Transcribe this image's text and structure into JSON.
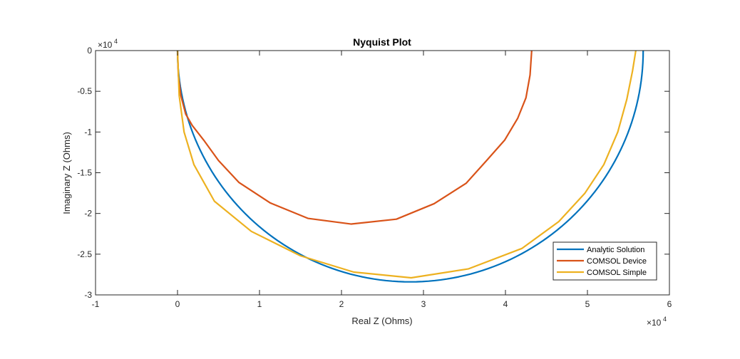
{
  "chart_data": {
    "type": "line",
    "title": "Nyquist Plot",
    "xlabel": "Real Z (Ohms)",
    "ylabel": "Imaginary Z (Ohms)",
    "x_multiplier_label": "×10",
    "x_multiplier_exp": "4",
    "y_multiplier_label": "×10",
    "y_multiplier_exp": "4",
    "xlim": [
      -1,
      6
    ],
    "ylim": [
      -3,
      0
    ],
    "x_ticks": [
      -1,
      0,
      1,
      2,
      3,
      4,
      5,
      6
    ],
    "x_tick_labels": [
      "-1",
      "0",
      "1",
      "2",
      "3",
      "4",
      "5",
      "6"
    ],
    "y_ticks": [
      0,
      -0.5,
      -1,
      -1.5,
      -2,
      -2.5,
      -3
    ],
    "y_tick_labels": [
      "0",
      "-0.5",
      "-1",
      "-1.5",
      "-2",
      "-2.5",
      "-3"
    ],
    "grid": false,
    "legend_position": "lower-right",
    "units_note": "values in units of 10^4 Ohms",
    "series": [
      {
        "name": "Analytic Solution",
        "color": "#0072BD",
        "type": "semicircle",
        "x_start": 0.0,
        "x_end": 5.68,
        "y_min": -2.84
      },
      {
        "name": "COMSOL Device",
        "color": "#D95319",
        "x": [
          0.0,
          0.01,
          0.04,
          0.1,
          0.18,
          0.32,
          0.5,
          0.75,
          1.13,
          1.59,
          2.12,
          2.67,
          3.13,
          3.52,
          3.77,
          3.99,
          4.15,
          4.25,
          4.3,
          4.32
        ],
        "y": [
          0.0,
          -0.3,
          -0.55,
          -0.78,
          -0.92,
          -1.1,
          -1.35,
          -1.62,
          -1.87,
          -2.06,
          -2.13,
          -2.07,
          -1.88,
          -1.63,
          -1.35,
          -1.1,
          -0.83,
          -0.58,
          -0.3,
          0.0
        ]
      },
      {
        "name": "COMSOL Simple",
        "color": "#EDB120",
        "x": [
          0.0,
          0.02,
          0.08,
          0.2,
          0.45,
          0.9,
          1.5,
          2.15,
          2.85,
          3.55,
          4.2,
          4.65,
          4.97,
          5.2,
          5.37,
          5.48,
          5.55,
          5.59
        ],
        "y": [
          0.0,
          -0.55,
          -1.0,
          -1.4,
          -1.85,
          -2.22,
          -2.52,
          -2.72,
          -2.79,
          -2.68,
          -2.43,
          -2.1,
          -1.75,
          -1.4,
          -1.0,
          -0.6,
          -0.25,
          0.0
        ]
      }
    ]
  }
}
